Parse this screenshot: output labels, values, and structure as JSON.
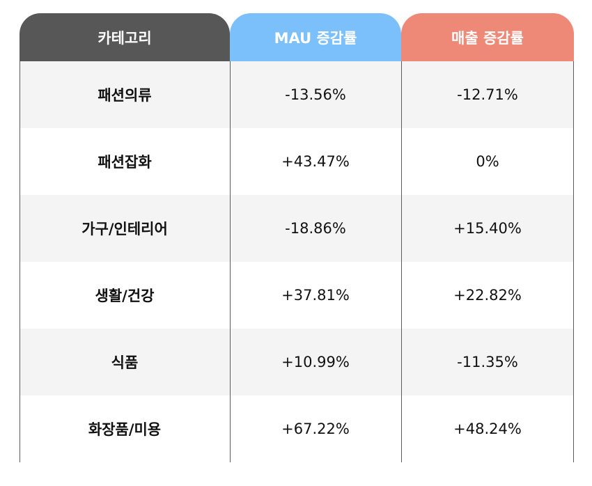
{
  "chart_data": {
    "type": "table",
    "columns": [
      "카테고리",
      "MAU 증감률",
      "매출 증감률"
    ],
    "header_colors": [
      "#575757",
      "#7cc0fb",
      "#ee8877"
    ],
    "rows": [
      [
        "패션의류",
        "-13.56%",
        "-12.71%"
      ],
      [
        "패션잡화",
        "+43.47%",
        "0%"
      ],
      [
        "가구/인테리어",
        "-18.86%",
        "+15.40%"
      ],
      [
        "생활/건강",
        "+37.81%",
        "+22.82%"
      ],
      [
        "식품",
        "+10.99%",
        "-11.35%"
      ],
      [
        "화장품/미용",
        "+67.22%",
        "+48.24%"
      ]
    ]
  }
}
